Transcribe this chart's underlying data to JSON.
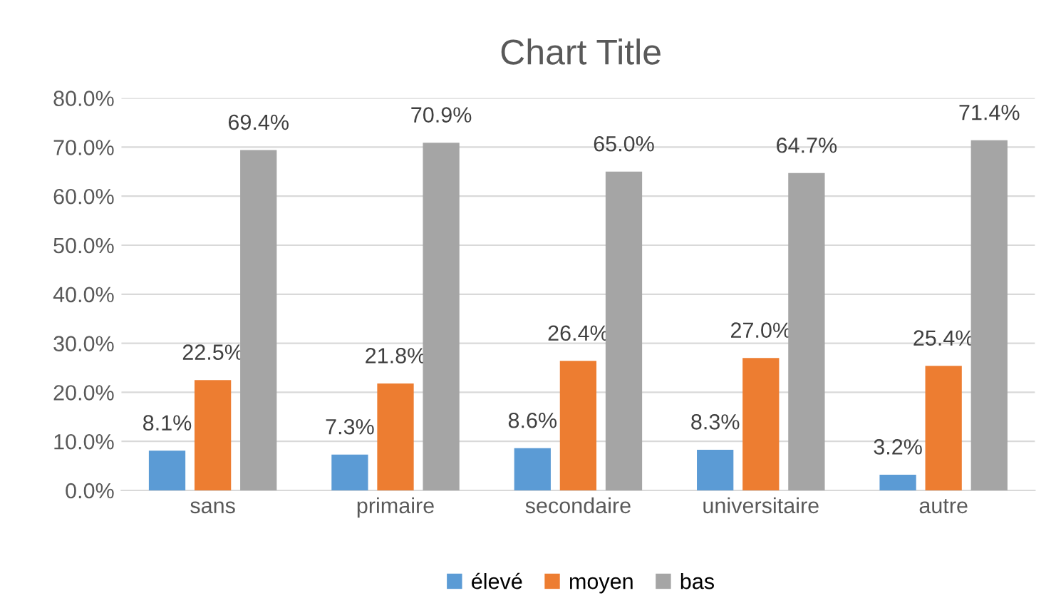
{
  "chart_data": {
    "type": "bar",
    "title": "Chart Title",
    "categories": [
      "sans",
      "primaire",
      "secondaire",
      "universitaire",
      "autre"
    ],
    "series": [
      {
        "name": "élevé",
        "color": "#5b9bd5",
        "values": [
          8.1,
          7.3,
          8.6,
          8.3,
          3.2
        ],
        "value_labels": [
          "8.1%",
          "7.3%",
          "8.6%",
          "8.3%",
          "3.2%"
        ]
      },
      {
        "name": "moyen",
        "color": "#ed7d31",
        "values": [
          22.5,
          21.8,
          26.4,
          27.0,
          25.4
        ],
        "value_labels": [
          "22.5%",
          "21.8%",
          "26.4%",
          "27.0%",
          "25.4%"
        ]
      },
      {
        "name": "bas",
        "color": "#a5a5a5",
        "values": [
          69.4,
          70.9,
          65.0,
          64.7,
          71.4
        ],
        "value_labels": [
          "69.4%",
          "70.9%",
          "65.0%",
          "64.7%",
          "71.4%"
        ]
      }
    ],
    "ylim": [
      0,
      80
    ],
    "yticks": [
      {
        "value": 0,
        "label": "0.0%"
      },
      {
        "value": 10,
        "label": "10.0%"
      },
      {
        "value": 20,
        "label": "20.0%"
      },
      {
        "value": 30,
        "label": "30.0%"
      },
      {
        "value": 40,
        "label": "40.0%"
      },
      {
        "value": 50,
        "label": "50.0%"
      },
      {
        "value": 60,
        "label": "60.0%"
      },
      {
        "value": 70,
        "label": "70.0%"
      },
      {
        "value": 80,
        "label": "80.0%"
      }
    ],
    "grid": "y",
    "legend": "bottom"
  }
}
